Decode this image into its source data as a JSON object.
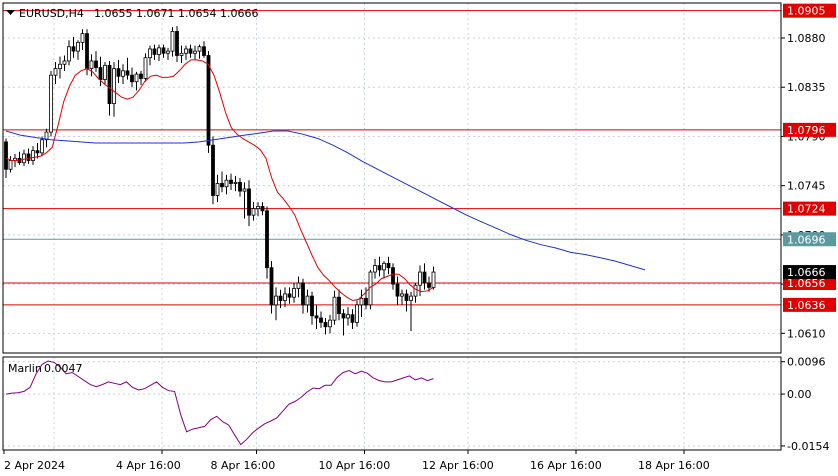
{
  "header": {
    "symbol": "EURUSD,H4",
    "ohlc": "1.0655 1.0671 1.0654 1.0666"
  },
  "indicator": {
    "name": "Marlin",
    "value": "0.0047"
  },
  "colors": {
    "bull": "#ffffff",
    "bear": "#000000",
    "ma_red": "#e00000",
    "ma_blue": "#1f2fd0",
    "level_red": "#e00000",
    "level_teal": "#5a9aa0",
    "osc": "#800080",
    "grid": "#c8d4dc"
  },
  "chart_data": [
    {
      "type": "candlestick",
      "title": "EURUSD,H4",
      "ylim": [
        1.0592,
        1.0912
      ],
      "y_ticks": [
        "1.0880",
        "1.0835",
        "1.0790",
        "1.0745",
        "1.0700",
        "1.0655",
        "1.0610"
      ],
      "y_tick_values": [
        1.088,
        1.0835,
        1.079,
        1.0745,
        1.07,
        1.0655,
        1.061
      ],
      "x_ticks": [
        "2 Apr 2024",
        "4 Apr 16:00",
        "8 Apr 16:00",
        "10 Apr 16:00",
        "12 Apr 16:00",
        "16 Apr 16:00",
        "18 Apr 16:00"
      ],
      "x_tick_index": [
        0,
        24,
        45,
        69,
        92,
        116,
        140
      ],
      "grid": true,
      "levels": [
        {
          "value": 1.0905,
          "label": "1.0905",
          "color": "red"
        },
        {
          "value": 1.0796,
          "label": "1.0796",
          "color": "red"
        },
        {
          "value": 1.0724,
          "label": "1.0724",
          "color": "red"
        },
        {
          "value": 1.0696,
          "label": "1.0696",
          "color": "teal"
        },
        {
          "value": 1.0656,
          "label": "1.0656",
          "color": "red"
        },
        {
          "value": 1.0636,
          "label": "1.0636",
          "color": "red"
        }
      ],
      "current_price": {
        "value": 1.0666,
        "label": "1.0666"
      },
      "candles": [
        [
          1.0785,
          1.0788,
          1.0752,
          1.076
        ],
        [
          1.076,
          1.0772,
          1.0757,
          1.0768
        ],
        [
          1.0768,
          1.0774,
          1.0762,
          1.077
        ],
        [
          1.077,
          1.0776,
          1.0764,
          1.0766
        ],
        [
          1.0766,
          1.0778,
          1.0763,
          1.0774
        ],
        [
          1.0774,
          1.0779,
          1.0765,
          1.0768
        ],
        [
          1.0768,
          1.0781,
          1.0764,
          1.0777
        ],
        [
          1.0777,
          1.0784,
          1.077,
          1.0775
        ],
        [
          1.0775,
          1.079,
          1.0772,
          1.0787
        ],
        [
          1.0787,
          1.0797,
          1.078,
          1.0794
        ],
        [
          1.0794,
          1.085,
          1.079,
          1.0846
        ],
        [
          1.0846,
          1.0858,
          1.0838,
          1.0852
        ],
        [
          1.0852,
          1.0863,
          1.0843,
          1.0856
        ],
        [
          1.0856,
          1.0864,
          1.085,
          1.0859
        ],
        [
          1.0859,
          1.0878,
          1.0855,
          1.0872
        ],
        [
          1.0872,
          1.0881,
          1.0862,
          1.0868
        ],
        [
          1.0868,
          1.0878,
          1.086,
          1.0876
        ],
        [
          1.0876,
          1.0888,
          1.0869,
          1.0884
        ],
        [
          1.0884,
          1.0888,
          1.0846,
          1.0852
        ],
        [
          1.0852,
          1.0865,
          1.0845,
          1.0859
        ],
        [
          1.0859,
          1.0868,
          1.0849,
          1.0853
        ],
        [
          1.0853,
          1.0863,
          1.0836,
          1.0842
        ],
        [
          1.0842,
          1.0858,
          1.0838,
          1.0855
        ],
        [
          1.0855,
          1.0859,
          1.0809,
          1.082
        ],
        [
          1.082,
          1.0858,
          1.0808,
          1.0852
        ],
        [
          1.0852,
          1.086,
          1.0839,
          1.0845
        ],
        [
          1.0845,
          1.0856,
          1.0838,
          1.085
        ],
        [
          1.085,
          1.0862,
          1.0842,
          1.0846
        ],
        [
          1.0846,
          1.0853,
          1.0835,
          1.084
        ],
        [
          1.084,
          1.0849,
          1.0832,
          1.0847
        ],
        [
          1.0847,
          1.085,
          1.0837,
          1.0843
        ],
        [
          1.0843,
          1.0866,
          1.084,
          1.0862
        ],
        [
          1.0862,
          1.0873,
          1.0855,
          1.087
        ],
        [
          1.087,
          1.0874,
          1.086,
          1.0865
        ],
        [
          1.0865,
          1.0874,
          1.0859,
          1.0871
        ],
        [
          1.0871,
          1.0874,
          1.0862,
          1.0866
        ],
        [
          1.0866,
          1.0871,
          1.086,
          1.0868
        ],
        [
          1.0868,
          1.089,
          1.0863,
          1.0886
        ],
        [
          1.0886,
          1.0891,
          1.0858,
          1.0864
        ],
        [
          1.0864,
          1.0873,
          1.0857,
          1.0866
        ],
        [
          1.0866,
          1.0873,
          1.086,
          1.087
        ],
        [
          1.087,
          1.0874,
          1.0862,
          1.0866
        ],
        [
          1.0866,
          1.0873,
          1.086,
          1.0868
        ],
        [
          1.0868,
          1.0874,
          1.0861,
          1.0872
        ],
        [
          1.0872,
          1.0877,
          1.0862,
          1.0864
        ],
        [
          1.0864,
          1.0868,
          1.0775,
          1.0782
        ],
        [
          1.0782,
          1.079,
          1.0728,
          1.0736
        ],
        [
          1.0736,
          1.0755,
          1.073,
          1.0747
        ],
        [
          1.0747,
          1.0758,
          1.0739,
          1.0744
        ],
        [
          1.0744,
          1.0755,
          1.0737,
          1.075
        ],
        [
          1.075,
          1.0756,
          1.0741,
          1.0747
        ],
        [
          1.0747,
          1.0754,
          1.074,
          1.0748
        ],
        [
          1.0748,
          1.0752,
          1.0735,
          1.074
        ],
        [
          1.074,
          1.0748,
          1.0715,
          1.0742
        ],
        [
          1.0742,
          1.075,
          1.0708,
          1.0718
        ],
        [
          1.0718,
          1.073,
          1.0713,
          1.0724
        ],
        [
          1.0724,
          1.073,
          1.0717,
          1.0726
        ],
        [
          1.0726,
          1.073,
          1.0718,
          1.0722
        ],
        [
          1.0722,
          1.0726,
          1.066,
          1.067
        ],
        [
          1.067,
          1.0676,
          1.0628,
          1.0636
        ],
        [
          1.0636,
          1.0652,
          1.0622,
          1.0644
        ],
        [
          1.0644,
          1.065,
          1.0633,
          1.064
        ],
        [
          1.064,
          1.0652,
          1.0634,
          1.0646
        ],
        [
          1.0646,
          1.0652,
          1.0637,
          1.0643
        ],
        [
          1.0643,
          1.0656,
          1.0638,
          1.0651
        ],
        [
          1.0651,
          1.0662,
          1.0643,
          1.0656
        ],
        [
          1.0656,
          1.066,
          1.0628,
          1.0636
        ],
        [
          1.0636,
          1.065,
          1.0629,
          1.0644
        ],
        [
          1.0644,
          1.0648,
          1.0618,
          1.0626
        ],
        [
          1.0626,
          1.0636,
          1.0614,
          1.0624
        ],
        [
          1.0624,
          1.063,
          1.0615,
          1.062
        ],
        [
          1.062,
          1.0624,
          1.0609,
          1.0616
        ],
        [
          1.0616,
          1.0627,
          1.061,
          1.0622
        ],
        [
          1.0622,
          1.0649,
          1.0618,
          1.0643
        ],
        [
          1.0643,
          1.065,
          1.0622,
          1.0628
        ],
        [
          1.0628,
          1.0632,
          1.0608,
          1.0624
        ],
        [
          1.0624,
          1.0634,
          1.0617,
          1.0627
        ],
        [
          1.0627,
          1.0632,
          1.0614,
          1.062
        ],
        [
          1.062,
          1.064,
          1.0616,
          1.0636
        ],
        [
          1.0636,
          1.065,
          1.0625,
          1.0642
        ],
        [
          1.0642,
          1.0652,
          1.0632,
          1.0636
        ],
        [
          1.0636,
          1.0668,
          1.0632,
          1.0666
        ],
        [
          1.0666,
          1.0678,
          1.066,
          1.0672
        ],
        [
          1.0672,
          1.068,
          1.0662,
          1.0668
        ],
        [
          1.0668,
          1.0676,
          1.066,
          1.0674
        ],
        [
          1.0674,
          1.068,
          1.0664,
          1.067
        ],
        [
          1.067,
          1.0674,
          1.065,
          1.0655
        ],
        [
          1.0655,
          1.0662,
          1.0636,
          1.0644
        ],
        [
          1.0644,
          1.065,
          1.0636,
          1.0646
        ],
        [
          1.0646,
          1.065,
          1.063,
          1.064
        ],
        [
          1.064,
          1.0648,
          1.0612,
          1.0644
        ],
        [
          1.0644,
          1.0656,
          1.0638,
          1.0654
        ],
        [
          1.0654,
          1.0672,
          1.0644,
          1.0666
        ],
        [
          1.0666,
          1.0674,
          1.065,
          1.0656
        ],
        [
          1.0656,
          1.0662,
          1.0648,
          1.0652
        ],
        [
          1.0652,
          1.0671,
          1.065,
          1.0666
        ]
      ],
      "ma_red": [
        1.077,
        1.0768,
        1.0768,
        1.0769,
        1.077,
        1.0771,
        1.0772,
        1.0775,
        1.078,
        1.08,
        1.0822,
        1.0836,
        1.0846,
        1.085,
        1.0852,
        1.0849,
        1.0843,
        1.0838,
        1.0834,
        1.083,
        1.0826,
        1.0824,
        1.0826,
        1.0832,
        1.084,
        1.0845,
        1.0846,
        1.0844,
        1.0844,
        1.0845,
        1.085,
        1.0856,
        1.086,
        1.086,
        1.0859,
        1.0856,
        1.0846,
        1.083,
        1.0812,
        1.0798,
        1.0792,
        1.0788,
        1.0785,
        1.0782,
        1.0778,
        1.077,
        1.0752,
        1.0739,
        1.0733,
        1.0726,
        1.0718,
        1.0705,
        1.0693,
        1.0681,
        1.067,
        1.0663,
        1.0658,
        1.0652,
        1.0647,
        1.0643,
        1.064,
        1.0641,
        1.0646,
        1.0652,
        1.0655,
        1.066,
        1.0662,
        1.0664,
        1.0664,
        1.066,
        1.0654,
        1.065,
        1.0648,
        1.0649,
        1.0652
      ],
      "ma_blue": [
        1.0795,
        1.0791,
        1.0789,
        1.0787,
        1.0786,
        1.0785,
        1.0784,
        1.0784,
        1.0784,
        1.0784,
        1.0784,
        1.0784,
        1.0784,
        1.0785,
        1.0787,
        1.0789,
        1.0791,
        1.0793,
        1.0795,
        1.0795,
        1.0792,
        1.0788,
        1.0782,
        1.0775,
        1.0767,
        1.076,
        1.0753,
        1.0746,
        1.0739,
        1.0732,
        1.0725,
        1.0718,
        1.0712,
        1.0706,
        1.07,
        1.0695,
        1.0691,
        1.0688,
        1.0684,
        1.0682,
        1.0679,
        1.0676,
        1.0672,
        1.0668
      ]
    },
    {
      "type": "line",
      "name": "Marlin",
      "ylim": [
        -0.0166,
        0.011
      ],
      "y_ticks": [
        "0.0096",
        "0.00",
        "-0.0154"
      ],
      "y_tick_values": [
        0.0096,
        0.0,
        -0.0154
      ],
      "values": [
        0.0,
        0.0003,
        0.0004,
        0.0008,
        0.002,
        0.006,
        0.0088,
        0.0098,
        0.0094,
        0.008,
        0.006,
        0.0064,
        0.0052,
        0.004,
        0.0028,
        0.0022,
        0.0028,
        0.0036,
        0.0032,
        0.0028,
        0.0036,
        0.002,
        0.0012,
        0.0016,
        0.0026,
        0.0036,
        0.002,
        0.001,
        0.0008,
        -0.006,
        -0.0112,
        -0.0104,
        -0.01,
        -0.0096,
        -0.0076,
        -0.0066,
        -0.0082,
        -0.0092,
        -0.0122,
        -0.015,
        -0.0134,
        -0.0114,
        -0.01,
        -0.0088,
        -0.008,
        -0.007,
        -0.005,
        -0.003,
        -0.0022,
        -0.001,
        0.0006,
        0.0018,
        0.0016,
        0.0026,
        0.0026,
        0.005,
        0.0064,
        0.007,
        0.006,
        0.0068,
        0.0062,
        0.0048,
        0.004,
        0.0036,
        0.0036,
        0.0042,
        0.0048,
        0.0054,
        0.0042,
        0.0048,
        0.004,
        0.0046
      ]
    }
  ]
}
